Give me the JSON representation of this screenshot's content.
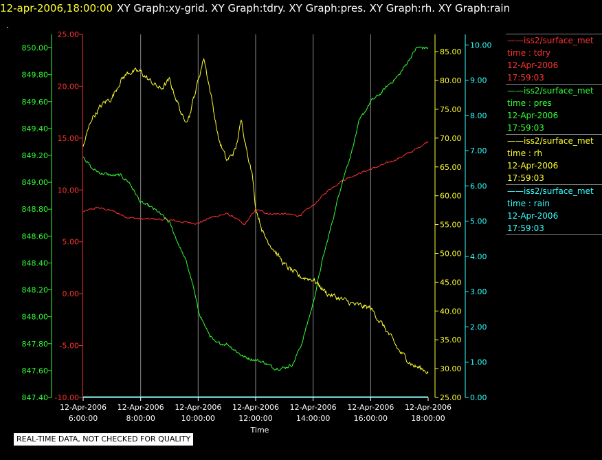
{
  "header": {
    "datetime": "12-apr-2006,18:00:00",
    "graphs": "XY Graph:xy-grid.  XY Graph:tdry.  XY Graph:pres.  XY Graph:rh.  XY Graph:rain",
    "dot": "."
  },
  "notice": "REAL-TIME DATA, NOT CHECKED FOR QUALITY",
  "legend": [
    {
      "color": "#ff3333",
      "title": "iss2/surface_met",
      "var": "time : tdry",
      "date": "12-Apr-2006",
      "time": "17:59:03"
    },
    {
      "color": "#33ff33",
      "title": "iss2/surface_met",
      "var": "time : pres",
      "date": "12-Apr-2006",
      "time": "17:59:03"
    },
    {
      "color": "#ffff33",
      "title": "iss2/surface_met",
      "var": "time : rh",
      "date": "12-Apr-2006",
      "time": "17:59:03"
    },
    {
      "color": "#33ffff",
      "title": "iss2/surface_met",
      "var": "time : rain",
      "date": "12-Apr-2006",
      "time": "17:59:03"
    }
  ],
  "chart_data": {
    "type": "line",
    "xlabel": "Time",
    "x_ticks": [
      {
        "h": 6,
        "date": "12-Apr-2006",
        "time": "6:00:00"
      },
      {
        "h": 8,
        "date": "12-Apr-2006",
        "time": "8:00:00"
      },
      {
        "h": 10,
        "date": "12-Apr-2006",
        "time": "10:00:00"
      },
      {
        "h": 12,
        "date": "12-Apr-2006",
        "time": "12:00:00"
      },
      {
        "h": 14,
        "date": "12-Apr-2006",
        "time": "14:00:00"
      },
      {
        "h": 16,
        "date": "12-Apr-2006",
        "time": "16:00:00"
      },
      {
        "h": 18,
        "date": "12-Apr-2006",
        "time": "18:00:00"
      }
    ],
    "xlim_hours": [
      6,
      18
    ],
    "grid": "vertical",
    "axes": [
      {
        "id": "pres",
        "color": "#33ff33",
        "lim": [
          847.4,
          850.1
        ],
        "ticks": [
          "847.40",
          "847.60",
          "847.80",
          "848.00",
          "848.20",
          "848.40",
          "848.60",
          "848.80",
          "849.00",
          "849.20",
          "849.40",
          "849.60",
          "849.80",
          "850.00"
        ]
      },
      {
        "id": "tdry",
        "color": "#ff3333",
        "lim": [
          -10,
          25
        ],
        "ticks": [
          "-10.00",
          "-5.00",
          "0.00",
          "5.00",
          "10.00",
          "15.00",
          "20.00",
          "25.00"
        ]
      },
      {
        "id": "rh",
        "color": "#ffff33",
        "lim": [
          25,
          88
        ],
        "ticks": [
          "25.00",
          "30.00",
          "35.00",
          "40.00",
          "45.00",
          "50.00",
          "55.00",
          "60.00",
          "65.00",
          "70.00",
          "75.00",
          "80.00",
          "85.00"
        ]
      },
      {
        "id": "rain",
        "color": "#33ffff",
        "lim": [
          0,
          10.3
        ],
        "ticks": [
          "0.00",
          "1.00",
          "2.00",
          "3.00",
          "4.00",
          "5.00",
          "6.00",
          "7.00",
          "8.00",
          "9.00",
          "10.00"
        ]
      }
    ],
    "series": [
      {
        "name": "time : tdry",
        "axis": "tdry",
        "color": "#ff3333",
        "noise": 0.15,
        "x": [
          6.0,
          6.5,
          7.0,
          7.5,
          8.0,
          8.5,
          9.0,
          9.5,
          10.0,
          10.5,
          11.0,
          11.3,
          11.6,
          12.0,
          12.5,
          13.0,
          13.5,
          14.0,
          14.5,
          15.0,
          15.5,
          16.0,
          16.5,
          17.0,
          17.5,
          18.0
        ],
        "y": [
          7.9,
          8.3,
          8.0,
          7.4,
          7.2,
          7.2,
          7.1,
          6.9,
          6.8,
          7.4,
          7.7,
          7.3,
          6.6,
          8.1,
          7.7,
          7.7,
          7.5,
          8.5,
          9.9,
          10.9,
          11.5,
          12.0,
          12.5,
          13.1,
          13.8,
          14.7
        ]
      },
      {
        "name": "time : pres",
        "axis": "pres",
        "color": "#33ff33",
        "noise": 0.02,
        "x": [
          6.0,
          6.3,
          6.6,
          7.0,
          7.3,
          7.6,
          8.0,
          8.3,
          8.6,
          9.0,
          9.3,
          9.6,
          9.8,
          10.0,
          10.3,
          10.6,
          11.0,
          11.3,
          11.6,
          12.0,
          12.3,
          12.6,
          13.0,
          13.3,
          13.6,
          14.0,
          14.3,
          14.6,
          15.0,
          15.3,
          15.6,
          16.0,
          16.3,
          16.6,
          17.0,
          17.3,
          17.6,
          18.0
        ],
        "y": [
          849.2,
          849.1,
          849.07,
          849.05,
          849.05,
          849.0,
          848.85,
          848.82,
          848.78,
          848.7,
          848.55,
          848.4,
          848.25,
          848.05,
          847.9,
          847.8,
          847.8,
          847.75,
          847.7,
          847.68,
          847.66,
          847.62,
          847.62,
          847.65,
          847.8,
          848.1,
          848.4,
          848.65,
          849.0,
          849.2,
          849.45,
          849.6,
          849.65,
          849.72,
          849.8,
          849.9,
          850.0,
          850.0
        ]
      },
      {
        "name": "time : rh",
        "axis": "rh",
        "color": "#ffff33",
        "noise": 0.8,
        "x": [
          6.0,
          6.3,
          6.7,
          7.0,
          7.3,
          7.6,
          8.0,
          8.3,
          8.7,
          9.0,
          9.3,
          9.5,
          9.7,
          10.0,
          10.2,
          10.5,
          10.7,
          11.0,
          11.3,
          11.5,
          11.9,
          12.0,
          12.3,
          12.6,
          13.0,
          13.5,
          14.0,
          14.5,
          15.0,
          15.5,
          16.0,
          16.5,
          17.0,
          17.5,
          18.0
        ],
        "y": [
          68.5,
          73.5,
          76.0,
          77.0,
          80.0,
          81.5,
          81.5,
          80.0,
          78.5,
          80.0,
          76.0,
          73.0,
          74.0,
          80.0,
          84.0,
          76.0,
          70.0,
          66.0,
          68.0,
          73.0,
          63.0,
          58.0,
          53.0,
          51.0,
          48.0,
          46.0,
          45.5,
          43.0,
          42.0,
          41.0,
          40.5,
          37.0,
          33.0,
          30.5,
          29.5
        ]
      },
      {
        "name": "time : rain",
        "axis": "rain",
        "color": "#33ffff",
        "noise": 0,
        "x": [
          6.0,
          18.0
        ],
        "y": [
          0.02,
          0.02
        ]
      }
    ]
  }
}
